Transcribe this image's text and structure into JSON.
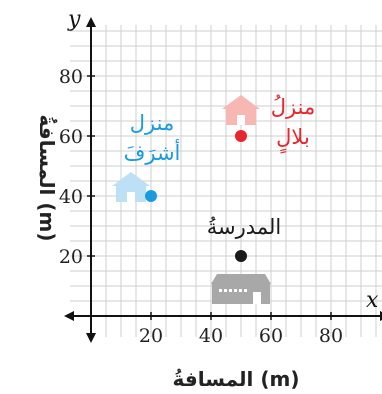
{
  "chart_data": {
    "type": "scatter",
    "x_axis": {
      "letter": "x",
      "label": "المسافةُ (m)",
      "ticks": [
        20,
        40,
        60,
        80
      ],
      "range": [
        -7,
        97
      ]
    },
    "y_axis": {
      "letter": "y",
      "label": "المسافةُ (m)",
      "ticks": [
        20,
        40,
        60,
        80
      ],
      "range": [
        -7,
        97
      ]
    },
    "grid": true,
    "points": [
      {
        "name_lines": [
          "منزل",
          "أشرَفَ"
        ],
        "x": 20,
        "y": 40,
        "color": "#1a9be0",
        "icon": "house-icon",
        "icon_color": "#bde0f5"
      },
      {
        "name_lines": [
          "منزلُ",
          "بلالٍ"
        ],
        "x": 50,
        "y": 60,
        "color": "#e8262d",
        "icon": "house-icon",
        "icon_color": "#f7b7b2"
      },
      {
        "name_lines": [
          "المدرسةُ"
        ],
        "x": 50,
        "y": 20,
        "color": "#1a1a1a",
        "icon": "school-icon",
        "icon_color": "#a8a8a8"
      }
    ]
  }
}
